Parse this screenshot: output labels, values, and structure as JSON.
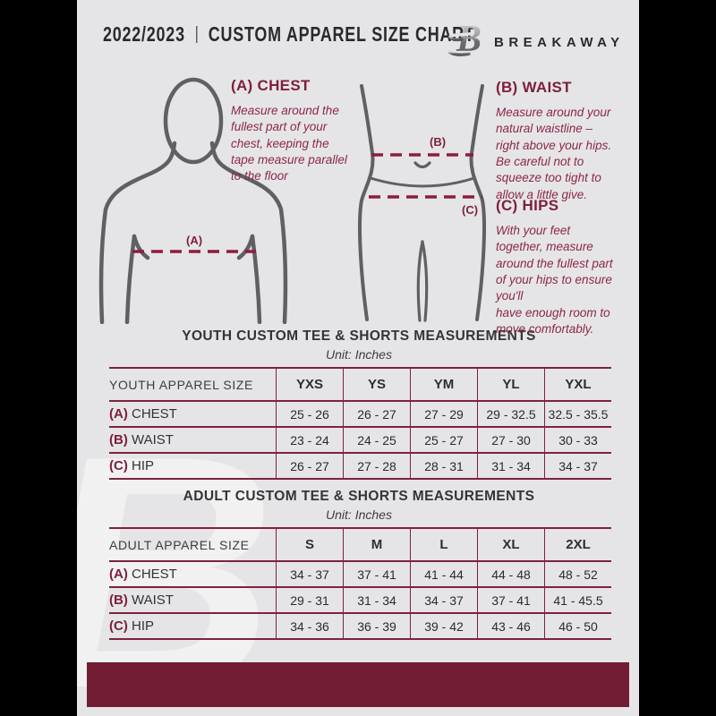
{
  "header": {
    "season": "2022/2023",
    "divider": "|",
    "title": "CUSTOM APPAREL SIZE CHART",
    "brand": "BREAKAWAY",
    "logo_icon": "breakaway-b-logo",
    "logo_letter": "B"
  },
  "instructions": [
    {
      "heading": "(A) CHEST",
      "body": "Measure around the\nfullest part of your\nchest, keeping the\ntape measure parallel\nto the floor"
    },
    {
      "heading": "(B) WAIST",
      "body": "Measure around your\nnatural waistline –\nright above your hips.\nBe careful not to\nsqueeze too tight to\nallow a little give."
    },
    {
      "heading": "(C) HIPS",
      "body": "With your feet\ntogether, measure\naround the fullest part\nof your hips to ensure\nyou'll\nhave enough room to\nmove comfortably."
    }
  ],
  "diagram_labels": {
    "chest": "(A)",
    "waist": "(B)",
    "hips": "(C)"
  },
  "tables": [
    {
      "title": "YOUTH CUSTOM TEE & SHORTS MEASUREMENTS",
      "unit": "Unit: Inches",
      "size_header": "YOUTH APPAREL SIZE",
      "sizes": [
        "YXS",
        "YS",
        "YM",
        "YL",
        "YXL"
      ],
      "rows": [
        {
          "prefix": "(A)",
          "label": "CHEST",
          "values": [
            "25 - 26",
            "26 - 27",
            "27 - 29",
            "29 - 32.5",
            "32.5 - 35.5"
          ]
        },
        {
          "prefix": "(B)",
          "label": "WAIST",
          "values": [
            "23 - 24",
            "24 - 25",
            "25 - 27",
            "27 - 30",
            "30 - 33"
          ]
        },
        {
          "prefix": "(C)",
          "label": "HIP",
          "values": [
            "26 - 27",
            "27 - 28",
            "28 - 31",
            "31 - 34",
            "34 - 37"
          ]
        }
      ]
    },
    {
      "title": "ADULT CUSTOM TEE & SHORTS MEASUREMENTS",
      "unit": "Unit: Inches",
      "size_header": "ADULT APPAREL SIZE",
      "sizes": [
        "S",
        "M",
        "L",
        "XL",
        "2XL"
      ],
      "rows": [
        {
          "prefix": "(A)",
          "label": "CHEST",
          "values": [
            "34 - 37",
            "37 - 41",
            "41 - 44",
            "44 - 48",
            "48 - 52"
          ]
        },
        {
          "prefix": "(B)",
          "label": "WAIST",
          "values": [
            "29 - 31",
            "31 - 34",
            "34 - 37",
            "37 - 41",
            "41 - 45.5"
          ]
        },
        {
          "prefix": "(C)",
          "label": "HIP",
          "values": [
            "34 - 36",
            "36 - 39",
            "39 - 42",
            "43 - 46",
            "46 - 50"
          ]
        }
      ]
    }
  ],
  "colors": {
    "page_bg": "#e5e5e7",
    "maroon_heading": "#7d1f3a",
    "maroon_body_text": "#8d2746",
    "table_border": "#7d2240",
    "dashed_line": "#8e1c3e",
    "footer_band": "#721d33",
    "figure_stroke": "#606064",
    "dark_text": "#2a2a2c"
  }
}
